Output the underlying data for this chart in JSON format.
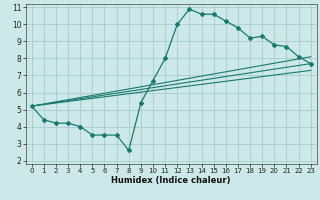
{
  "title": "",
  "xlabel": "Humidex (Indice chaleur)",
  "ylabel": "",
  "bg_color": "#cce8e8",
  "grid_color": "#aacccc",
  "line_color": "#1a7a6e",
  "xlim": [
    -0.5,
    23.5
  ],
  "ylim": [
    1.8,
    11.2
  ],
  "xticks": [
    0,
    1,
    2,
    3,
    4,
    5,
    6,
    7,
    8,
    9,
    10,
    11,
    12,
    13,
    14,
    15,
    16,
    17,
    18,
    19,
    20,
    21,
    22,
    23
  ],
  "yticks": [
    2,
    3,
    4,
    5,
    6,
    7,
    8,
    9,
    10,
    11
  ],
  "line1_x": [
    0,
    1,
    2,
    3,
    4,
    5,
    6,
    7,
    8,
    9,
    10,
    11,
    12,
    13,
    14,
    15,
    16,
    17,
    18,
    19,
    20,
    21,
    22,
    23
  ],
  "line1_y": [
    5.2,
    4.4,
    4.2,
    4.2,
    4.0,
    3.5,
    3.5,
    3.5,
    2.6,
    5.4,
    6.7,
    8.0,
    10.0,
    10.9,
    10.6,
    10.6,
    10.2,
    9.8,
    9.2,
    9.3,
    8.8,
    8.7,
    8.1,
    7.7
  ],
  "line2_x": [
    0,
    23
  ],
  "line2_y": [
    5.2,
    7.7
  ],
  "line3_x": [
    0,
    23
  ],
  "line3_y": [
    5.2,
    8.1
  ],
  "line4_x": [
    0,
    23
  ],
  "line4_y": [
    5.2,
    7.3
  ],
  "markers_x": [
    0,
    1,
    2,
    3,
    4,
    5,
    6,
    7,
    8,
    9,
    10,
    11,
    12,
    13,
    14,
    15,
    16,
    17,
    18,
    19,
    20,
    21,
    22,
    23
  ],
  "markers_y": [
    5.2,
    4.4,
    4.2,
    4.2,
    4.0,
    3.5,
    3.5,
    3.5,
    2.6,
    5.4,
    6.7,
    8.0,
    10.0,
    10.9,
    10.6,
    10.6,
    10.2,
    9.8,
    9.2,
    9.3,
    8.8,
    8.7,
    8.1,
    7.7
  ],
  "tick_fontsize": 5,
  "xlabel_fontsize": 6,
  "marker_size": 2.0
}
